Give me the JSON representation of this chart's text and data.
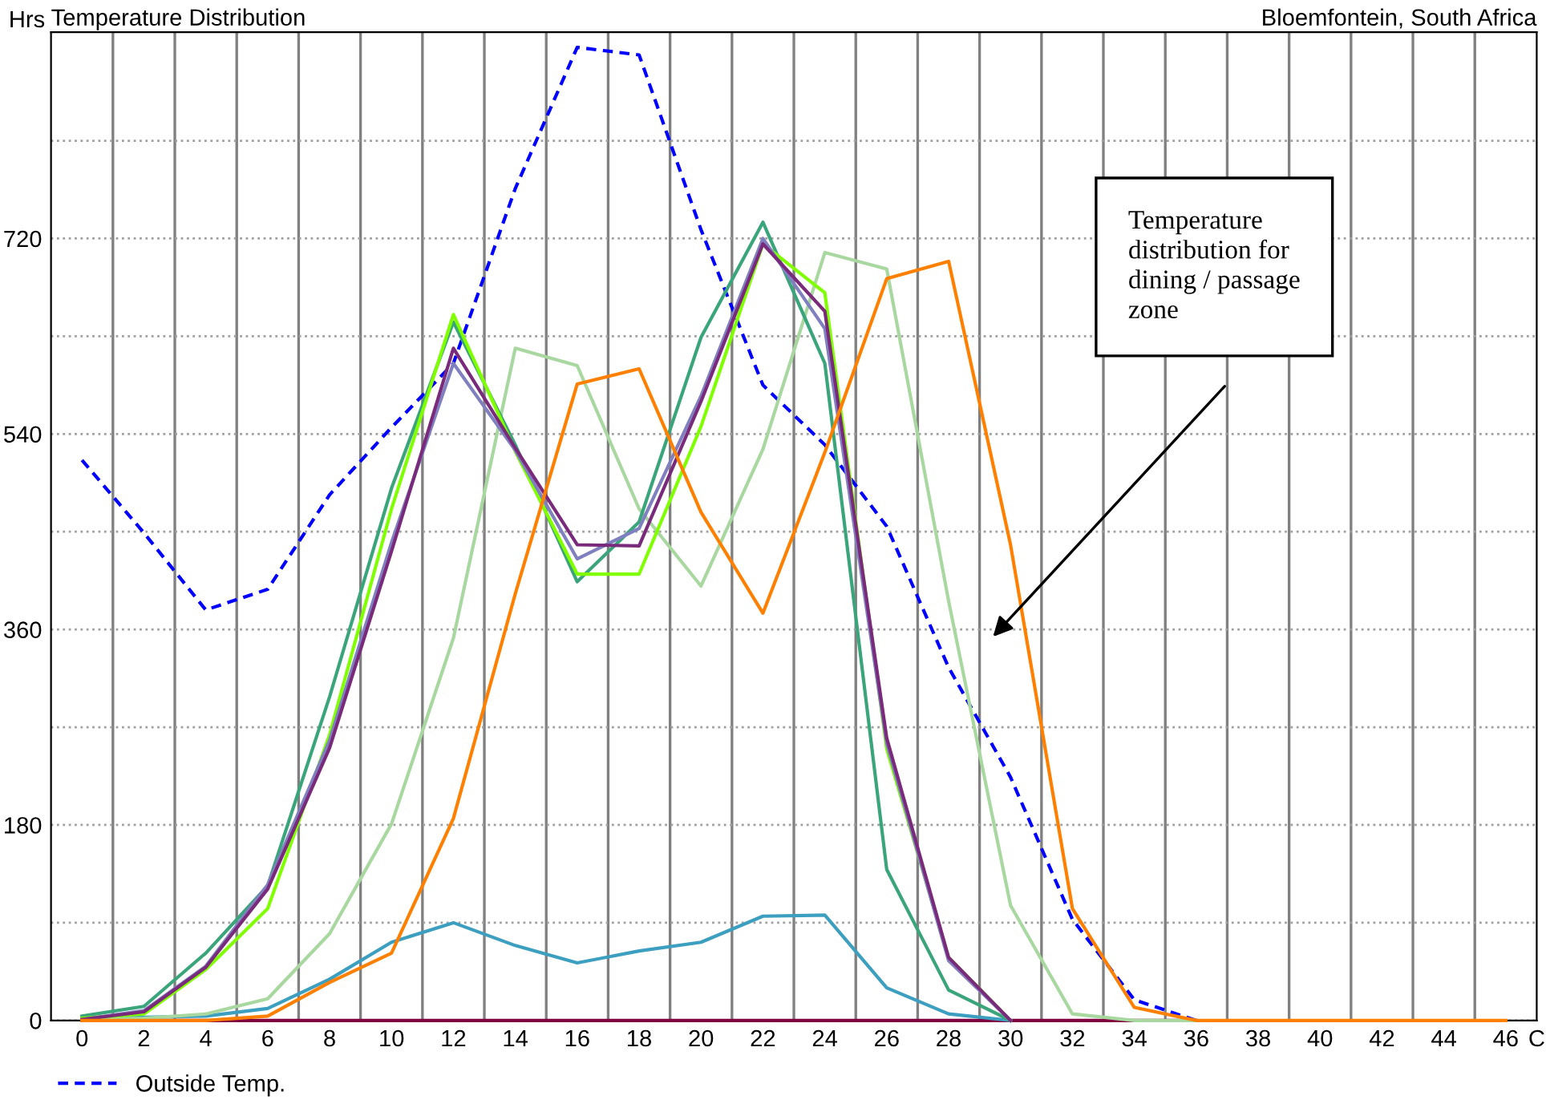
{
  "chart_data": {
    "type": "line",
    "title": "Temperature Distribution",
    "subtitle": "Bloemfontein, South Africa",
    "ylabel": "Hrs",
    "x": [
      0,
      2,
      4,
      6,
      8,
      10,
      12,
      14,
      16,
      18,
      20,
      22,
      24,
      26,
      28,
      30,
      32,
      34,
      36,
      38,
      40,
      42,
      44,
      46
    ],
    "series": [
      {
        "name": "Outside Temp.",
        "color": "#0000ff",
        "line_style": "dashed",
        "values": [
          516,
          449,
          378,
          397,
          484,
          546,
          605,
          766,
          896,
          889,
          728,
          585,
          530,
          455,
          325,
          224,
          93,
          19,
          0,
          null,
          null,
          null,
          null,
          null
        ]
      },
      {
        "color": "#800040",
        "values": [
          0,
          0,
          0,
          0,
          0,
          0,
          0,
          0,
          0,
          0,
          0,
          0,
          0,
          0,
          0,
          0,
          0,
          0,
          0,
          null,
          null,
          null,
          null,
          null
        ]
      },
      {
        "color": "#3d9fc0",
        "values": [
          2,
          3,
          4,
          11,
          38,
          72,
          90,
          69,
          53,
          64,
          72,
          96,
          97,
          30,
          6,
          0,
          null,
          null,
          null,
          null,
          null,
          null,
          null,
          null
        ]
      },
      {
        "color": "#a8d8a0",
        "values": [
          1,
          2,
          6,
          20,
          80,
          181,
          352,
          619,
          603,
          471,
          400,
          526,
          707,
          692,
          386,
          106,
          6,
          0,
          0,
          null,
          null,
          null,
          null,
          null
        ]
      },
      {
        "color": "#3aa57a",
        "values": [
          4,
          13,
          62,
          124,
          298,
          490,
          643,
          530,
          404,
          459,
          629,
          735,
          605,
          139,
          28,
          0,
          null,
          null,
          null,
          null,
          null,
          null,
          null,
          null
        ]
      },
      {
        "color": "#80ff00",
        "values": [
          2,
          6,
          47,
          103,
          263,
          471,
          650,
          524,
          411,
          411,
          547,
          715,
          670,
          250,
          58,
          0,
          null,
          null,
          null,
          null,
          null,
          null,
          null,
          null
        ]
      },
      {
        "color": "#8080c0",
        "values": [
          1,
          9,
          50,
          125,
          258,
          440,
          605,
          525,
          425,
          453,
          575,
          720,
          637,
          255,
          55,
          0,
          null,
          null,
          null,
          null,
          null,
          null,
          null,
          null
        ]
      },
      {
        "color": "#7a2a7a",
        "values": [
          1,
          8,
          49,
          121,
          251,
          432,
          619,
          527,
          438,
          437,
          570,
          715,
          653,
          260,
          58,
          0,
          null,
          null,
          null,
          null,
          null,
          null,
          null,
          null
        ]
      },
      {
        "color": "#ff8000",
        "values": [
          0,
          0,
          0,
          4,
          35,
          62,
          186,
          393,
          586,
          600,
          468,
          375,
          523,
          683,
          699,
          438,
          103,
          12,
          0,
          0,
          0,
          0,
          0,
          0
        ]
      }
    ],
    "xlim": [
      -1,
      47
    ],
    "ylim": [
      0,
      910
    ],
    "xticks": [
      0,
      {
        "value": 1,
        "label": null
      },
      2,
      {
        "value": 3,
        "label": null
      },
      4,
      {
        "value": 5,
        "label": null
      },
      6,
      {
        "value": 7,
        "label": null
      },
      8,
      {
        "value": 9,
        "label": null
      },
      10,
      {
        "value": 11,
        "label": null
      },
      12,
      {
        "value": 13,
        "label": null
      },
      14,
      {
        "value": 15,
        "label": null
      },
      16,
      {
        "value": 17,
        "label": null
      },
      18,
      {
        "value": 19,
        "label": null
      },
      20,
      {
        "value": 21,
        "label": null
      },
      22,
      {
        "value": 23,
        "label": null
      },
      24,
      {
        "value": 25,
        "label": null
      },
      26,
      {
        "value": 27,
        "label": null
      },
      28,
      {
        "value": 29,
        "label": null
      },
      30,
      {
        "value": 31,
        "label": null
      },
      32,
      {
        "value": 33,
        "label": null
      },
      34,
      {
        "value": 35,
        "label": null
      },
      36,
      {
        "value": 37,
        "label": null
      },
      38,
      {
        "value": 39,
        "label": null
      },
      40,
      {
        "value": 41,
        "label": null
      },
      42,
      {
        "value": 43,
        "label": null
      },
      44,
      {
        "value": 45,
        "label": null
      },
      46,
      {
        "value": 47,
        "label": "C"
      }
    ],
    "yticks": [
      0,
      {
        "value": 90,
        "label": null
      },
      180,
      {
        "value": 270,
        "label": null
      },
      360,
      {
        "value": 450,
        "label": null
      },
      540,
      {
        "value": 630,
        "label": null
      },
      720,
      {
        "value": 810,
        "label": null
      }
    ],
    "grid": true,
    "legend": "bottom left",
    "marker": "none",
    "annotations": [
      "Temperature\ndistribution for\ndining / passage\nzone"
    ]
  }
}
